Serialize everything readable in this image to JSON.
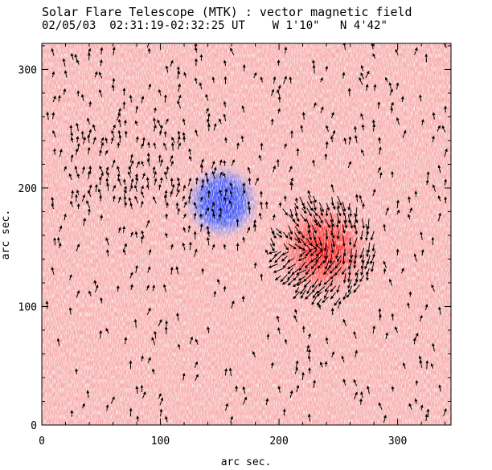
{
  "chart_data": {
    "type": "heatmap",
    "title": "Solar Flare Telescope (MTK) : vector magnetic field",
    "subtitle": {
      "date": "02/05/03",
      "time_range": "02:31:19-02:32:25 UT",
      "longitude": "W 1'10\"",
      "latitude": "N 4'42\""
    },
    "xlabel": "arc sec.",
    "ylabel": "arc sec.",
    "xlim": [
      0,
      345
    ],
    "ylim": [
      0,
      322
    ],
    "x_ticks": [
      0,
      100,
      200,
      300
    ],
    "y_ticks": [
      0,
      100,
      200,
      300
    ],
    "x_tick_labels": [
      "0",
      "100",
      "200",
      "300"
    ],
    "y_tick_labels": [
      "0",
      "100",
      "200",
      "300"
    ],
    "background_color": "#f7a8a8",
    "positive_color": "#ff2020",
    "negative_color": "#2a3cf0",
    "regions": [
      {
        "polarity": "negative",
        "center": [
          152,
          188
        ],
        "radius": 28
      },
      {
        "polarity": "positive",
        "center": [
          237,
          148
        ],
        "radius": 35
      }
    ],
    "vector_grid_spacing": 5
  }
}
